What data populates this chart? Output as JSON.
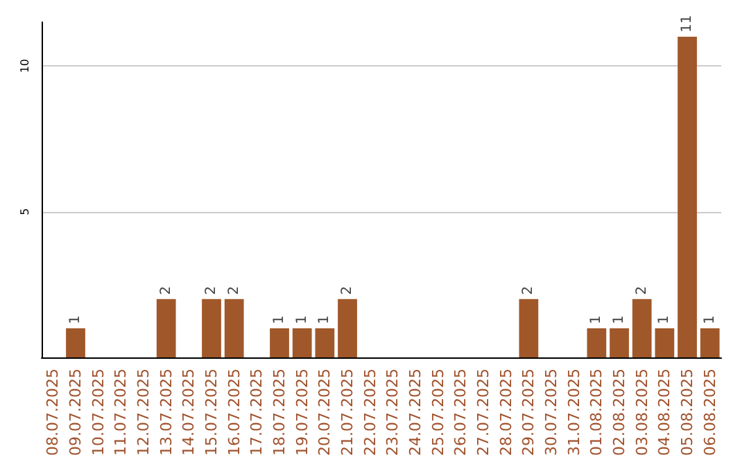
{
  "chart_data": {
    "type": "bar",
    "categories": [
      "08.07.2025",
      "09.07.2025",
      "10.07.2025",
      "11.07.2025",
      "12.07.2025",
      "13.07.2025",
      "14.07.2025",
      "15.07.2025",
      "16.07.2025",
      "17.07.2025",
      "18.07.2025",
      "19.07.2025",
      "20.07.2025",
      "21.07.2025",
      "22.07.2025",
      "23.07.2025",
      "24.07.2025",
      "25.07.2025",
      "26.07.2025",
      "27.07.2025",
      "28.07.2025",
      "29.07.2025",
      "30.07.2025",
      "31.07.2025",
      "01.08.2025",
      "02.08.2025",
      "03.08.2025",
      "04.08.2025",
      "05.08.2025",
      "06.08.2025"
    ],
    "values": [
      0,
      1,
      0,
      0,
      0,
      2,
      0,
      2,
      2,
      0,
      1,
      1,
      1,
      2,
      0,
      0,
      0,
      0,
      0,
      0,
      0,
      2,
      0,
      0,
      1,
      1,
      2,
      1,
      11,
      1
    ],
    "value_labels": [
      null,
      "1",
      null,
      null,
      null,
      "2",
      null,
      "2",
      "2",
      null,
      "1",
      "1",
      "1",
      "2",
      null,
      null,
      null,
      null,
      null,
      null,
      null,
      "2",
      null,
      null,
      "1",
      "1",
      "2",
      "1",
      "11",
      "1"
    ],
    "color": "#a0582a",
    "ylim": [
      0,
      11.5
    ],
    "yticks": [
      5,
      10
    ],
    "grid": "y"
  }
}
